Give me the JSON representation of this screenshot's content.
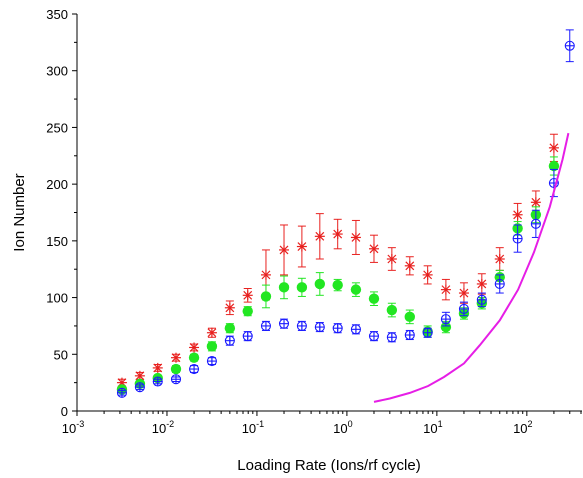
{
  "chart_data": {
    "type": "scatter",
    "title": "",
    "xlabel": "Loading Rate (Ions/rf cycle)",
    "ylabel": "Ion Number",
    "x_scale": "log",
    "xlim": [
      0.001,
      400
    ],
    "ylim": [
      0,
      350
    ],
    "x_ticks": [
      {
        "value": 0.001,
        "base": "10",
        "exp": "-3"
      },
      {
        "value": 0.01,
        "base": "10",
        "exp": "-2"
      },
      {
        "value": 0.1,
        "base": "10",
        "exp": "-1"
      },
      {
        "value": 1,
        "base": "10",
        "exp": "0"
      },
      {
        "value": 10,
        "base": "10",
        "exp": "1"
      },
      {
        "value": 100,
        "base": "10",
        "exp": "2"
      }
    ],
    "y_ticks": [
      0,
      50,
      100,
      150,
      200,
      250,
      300,
      350
    ],
    "grid": false,
    "legend": "none",
    "series": [
      {
        "marker": "asterisk",
        "color": "#e8211f",
        "x": [
          0.00316,
          0.005,
          0.0079,
          0.0126,
          0.02,
          0.0316,
          0.05,
          0.079,
          0.126,
          0.2,
          0.316,
          0.5,
          0.79,
          1.26,
          2.0,
          3.16,
          5.0,
          7.9,
          12.6,
          20,
          31.6,
          50,
          79,
          126,
          200
        ],
        "y": [
          25,
          31,
          38,
          47,
          56,
          69,
          91,
          102,
          120,
          142,
          145,
          154,
          156,
          153,
          143,
          134,
          128,
          120,
          107,
          104,
          112,
          134,
          173,
          184,
          232
        ],
        "err": [
          3,
          3,
          3,
          3,
          3,
          4,
          6,
          6,
          22,
          22,
          18,
          20,
          13,
          15,
          12,
          10,
          8,
          8,
          9,
          9,
          9,
          10,
          10,
          10,
          12
        ]
      },
      {
        "marker": "filled-circle",
        "color": "#22e622",
        "x": [
          0.00316,
          0.005,
          0.0079,
          0.0126,
          0.02,
          0.0316,
          0.05,
          0.079,
          0.126,
          0.2,
          0.316,
          0.5,
          0.79,
          1.26,
          2.0,
          3.16,
          5.0,
          7.9,
          12.6,
          20,
          31.6,
          50,
          79,
          126,
          200
        ],
        "y": [
          19,
          24,
          29,
          37,
          47,
          57,
          73,
          88,
          101,
          109,
          109,
          112,
          111,
          107,
          99,
          89,
          83,
          70,
          74,
          86,
          95,
          118,
          161,
          173,
          216
        ],
        "err": [
          2,
          2,
          2,
          3,
          3,
          4,
          4,
          4,
          10,
          10,
          8,
          10,
          5,
          6,
          6,
          6,
          6,
          5,
          5,
          5,
          5,
          6,
          6,
          7,
          8
        ]
      },
      {
        "marker": "open-circle-cross",
        "color": "#1a1aff",
        "x": [
          0.00316,
          0.005,
          0.0079,
          0.0126,
          0.02,
          0.0316,
          0.05,
          0.079,
          0.126,
          0.2,
          0.316,
          0.5,
          0.79,
          1.26,
          2.0,
          3.16,
          5.0,
          7.9,
          12.6,
          20,
          31.6,
          50,
          79,
          126,
          200,
          300
        ],
        "y": [
          16,
          21,
          26,
          28,
          37,
          44,
          62,
          66,
          75,
          77,
          75,
          74,
          73,
          72,
          66,
          65,
          67,
          69,
          81,
          90,
          98,
          112,
          152,
          165,
          201,
          322
        ],
        "err": [
          2,
          2,
          2,
          2,
          3,
          3,
          4,
          4,
          4,
          4,
          4,
          4,
          4,
          4,
          4,
          4,
          4,
          4,
          6,
          6,
          6,
          8,
          12,
          12,
          12,
          14
        ]
      },
      {
        "marker": "line",
        "color": "#e61ee6",
        "x": [
          2.0,
          3.0,
          5.0,
          8.0,
          12,
          20,
          30,
          50,
          80,
          120,
          180,
          250,
          290
        ],
        "y": [
          8,
          11,
          16,
          22,
          30,
          42,
          58,
          80,
          107,
          140,
          180,
          222,
          245
        ]
      }
    ]
  }
}
